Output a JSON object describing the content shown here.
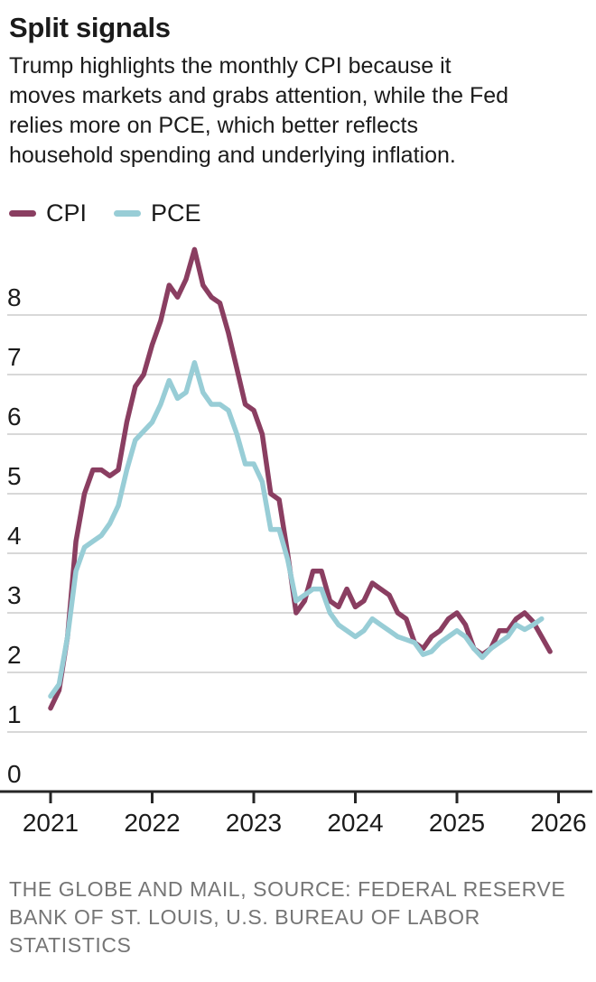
{
  "header": {
    "title": "Split signals",
    "subtitle_lines": [
      "Trump highlights the monthly CPI because it",
      "moves markets and grabs attention, while the Fed",
      "relies more on PCE, which better reflects",
      "household spending and underlying inflation."
    ]
  },
  "legend": {
    "items": [
      {
        "label": "CPI",
        "color": "#8a3e61"
      },
      {
        "label": "PCE",
        "color": "#98cdd6"
      }
    ]
  },
  "chart_data": {
    "type": "line",
    "title": "Split signals",
    "x_start": "2021-01",
    "x_interval": "month",
    "x_tick_labels": [
      "2021",
      "2022",
      "2023",
      "2024",
      "2025",
      "2026"
    ],
    "y_ticks": [
      0,
      1,
      2,
      3,
      4,
      5,
      6,
      7,
      8
    ],
    "ylim": [
      0,
      9.3
    ],
    "grid": true,
    "legend_position": "top-left",
    "series": [
      {
        "name": "CPI",
        "color": "#8a3e61",
        "values": [
          1.4,
          1.7,
          2.6,
          4.2,
          5.0,
          5.4,
          5.4,
          5.3,
          5.4,
          6.2,
          6.8,
          7.0,
          7.5,
          7.9,
          8.5,
          8.3,
          8.6,
          9.1,
          8.5,
          8.3,
          8.2,
          7.7,
          7.1,
          6.5,
          6.4,
          6.0,
          5.0,
          4.9,
          4.0,
          3.0,
          3.2,
          3.7,
          3.7,
          3.2,
          3.1,
          3.4,
          3.1,
          3.2,
          3.5,
          3.4,
          3.3,
          3.0,
          2.9,
          2.5,
          2.4,
          2.6,
          2.7,
          2.9,
          3.0,
          2.8,
          2.4,
          2.3,
          2.4,
          2.7,
          2.7,
          2.9,
          3.0,
          2.85,
          2.6,
          2.35
        ]
      },
      {
        "name": "PCE",
        "color": "#98cdd6",
        "values": [
          1.6,
          1.8,
          2.6,
          3.7,
          4.1,
          4.2,
          4.3,
          4.5,
          4.8,
          5.4,
          5.9,
          6.05,
          6.2,
          6.5,
          6.9,
          6.6,
          6.7,
          7.2,
          6.7,
          6.5,
          6.5,
          6.4,
          6.0,
          5.5,
          5.5,
          5.2,
          4.4,
          4.4,
          3.9,
          3.2,
          3.3,
          3.4,
          3.4,
          3.0,
          2.8,
          2.7,
          2.6,
          2.7,
          2.9,
          2.8,
          2.7,
          2.6,
          2.55,
          2.5,
          2.3,
          2.35,
          2.5,
          2.6,
          2.7,
          2.6,
          2.4,
          2.25,
          2.4,
          2.5,
          2.6,
          2.8,
          2.72,
          2.8,
          2.9
        ]
      }
    ]
  },
  "footer": {
    "source_lines": [
      "THE GLOBE AND MAIL, SOURCE: FEDERAL RESERVE",
      "BANK OF ST. LOUIS, U.S. BUREAU OF LABOR",
      "STATISTICS"
    ]
  },
  "colors": {
    "grid": "#cbcbcb",
    "axis": "#262626",
    "text": "#1b1b1b",
    "source_text": "#757575"
  }
}
